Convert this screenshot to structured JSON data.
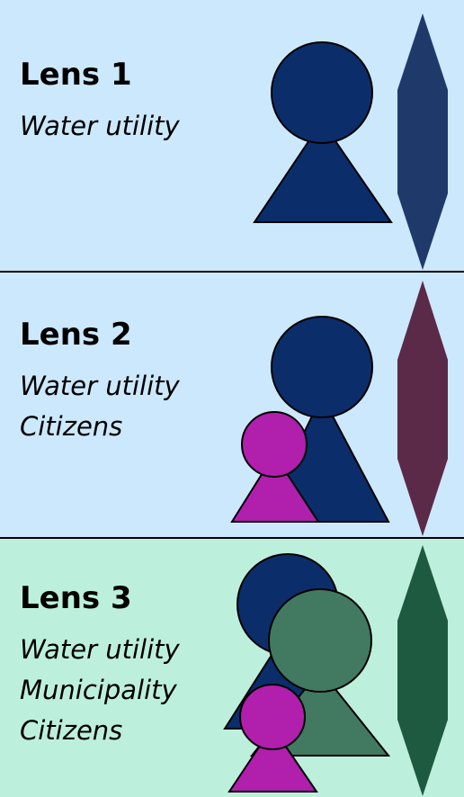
{
  "lenses": [
    {
      "title": "Lens 1",
      "roles": [
        "Water utility"
      ]
    },
    {
      "title": "Lens 2",
      "roles": [
        "Water utility",
        "Citizens"
      ]
    },
    {
      "title": "Lens 3",
      "roles": [
        "Water utility",
        "Municipality",
        "Citizens"
      ]
    }
  ]
}
